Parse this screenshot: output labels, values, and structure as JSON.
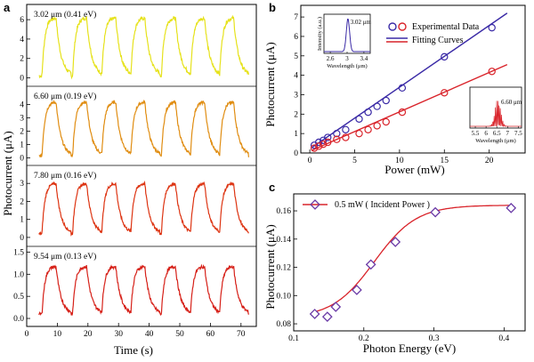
{
  "panels": {
    "a": "a",
    "b": "b",
    "c": "c"
  },
  "colors": {
    "yellow": "#e6e21c",
    "orange": "#e08d12",
    "redorange": "#dd3412",
    "red": "#d62018",
    "blue": "#3a2aa6",
    "fitred": "#d9232a",
    "marker": "#6a3aa6"
  },
  "chart_data": [
    {
      "type": "line",
      "id": "a",
      "xlabel": "Time  (s)",
      "ylabel": "Photocurrent  (μA)",
      "x_ticks": [
        0,
        10,
        20,
        30,
        40,
        50,
        60,
        70
      ],
      "xlim": [
        0,
        75
      ],
      "series": [
        {
          "name": "3.02 μm (0.41 eV)",
          "color": "#e6e21c",
          "yticks": [
            "0",
            "2",
            "4",
            "6"
          ],
          "ylim": [
            -0.5,
            7.2
          ],
          "base": 0.2,
          "peak": 6.2,
          "noise": 0.06
        },
        {
          "name": "6.60 μm (0.19 eV)",
          "color": "#e08d12",
          "yticks": [
            "0",
            "1",
            "2",
            "3",
            "4"
          ],
          "ylim": [
            -0.3,
            5.1
          ],
          "base": 0.15,
          "peak": 4.2,
          "noise": 0.05
        },
        {
          "name": "7.80 μm (0.16 eV)",
          "color": "#dd3412",
          "yticks": [
            "0",
            "1",
            "2",
            "3"
          ],
          "ylim": [
            -0.3,
            3.8
          ],
          "base": 0.2,
          "peak": 3.0,
          "noise": 0.05
        },
        {
          "name": "9.54 μm (0.13 eV)",
          "color": "#d62018",
          "yticks": [
            "0.0",
            "0.5",
            "1.0",
            "1.5"
          ],
          "ylim": [
            -0.1,
            1.55
          ],
          "base": 0.1,
          "peak": 1.18,
          "noise": 0.06
        }
      ],
      "pulse_starts": [
        5,
        15,
        24.5,
        34,
        44,
        53.5,
        63
      ]
    },
    {
      "type": "scatter",
      "id": "b",
      "xlabel": "Power  (mW)",
      "ylabel": "Photocurrent  (μA)",
      "x_ticks": [
        0,
        5,
        10,
        15,
        20
      ],
      "y_ticks": [
        0,
        1,
        2,
        3,
        4,
        5,
        6,
        7
      ],
      "xlim": [
        -1,
        24
      ],
      "ylim": [
        0,
        7.6
      ],
      "legend": [
        "Experimental Data",
        "Fitting Curves"
      ],
      "series": [
        {
          "name": "3.02 μm",
          "color": "#3a2aa6",
          "x": [
            0.5,
            1.0,
            1.5,
            2.0,
            3.0,
            4.0,
            5.5,
            6.5,
            7.5,
            8.5,
            10.3,
            15,
            20.3
          ],
          "y": [
            0.4,
            0.55,
            0.65,
            0.8,
            1.0,
            1.2,
            1.75,
            2.1,
            2.4,
            2.7,
            3.35,
            4.95,
            6.45
          ],
          "fit": [
            [
              0.3,
              0.3
            ],
            [
              22,
              7.2
            ]
          ]
        },
        {
          "name": "6.60 μm",
          "color": "#d9232a",
          "x": [
            0.5,
            1.0,
            1.5,
            2.0,
            3.0,
            4.0,
            5.5,
            6.5,
            7.5,
            8.5,
            10.3,
            15,
            20.3
          ],
          "y": [
            0.25,
            0.35,
            0.45,
            0.55,
            0.7,
            0.8,
            1.0,
            1.2,
            1.4,
            1.6,
            2.1,
            3.1,
            4.2
          ],
          "fit": [
            [
              0.3,
              0.15
            ],
            [
              22,
              4.55
            ]
          ]
        }
      ],
      "insets": [
        {
          "label": "3.02 μm",
          "xlabel": "Wavelength  (μm)",
          "ylabel": "Intensity (a.u.)",
          "xticks": [
            "2.6",
            "3",
            "3.4"
          ],
          "xlim": [
            2.45,
            3.55
          ]
        },
        {
          "label": "6.60 μm",
          "xlabel": "Wavelength  (μm)",
          "xticks": [
            "5.5",
            "6",
            "6.5",
            "7",
            "7.5"
          ],
          "xlim": [
            5.25,
            7.65
          ]
        }
      ]
    },
    {
      "type": "line",
      "id": "c",
      "xlabel": "Photon  Energy  (eV)",
      "ylabel": "Photocurrent  (μA)",
      "legend": "0.5 mW  ( Incident  Power )",
      "x_ticks": [
        "0.1",
        "0.2",
        "0.3",
        "0.4"
      ],
      "y_ticks": [
        "0.08",
        "0.10",
        "0.12",
        "0.14",
        "0.16"
      ],
      "xlim": [
        0.1,
        0.43
      ],
      "ylim": [
        0.075,
        0.172
      ],
      "x": [
        0.13,
        0.148,
        0.16,
        0.19,
        0.21,
        0.245,
        0.302,
        0.41
      ],
      "y": [
        0.087,
        0.085,
        0.092,
        0.104,
        0.122,
        0.138,
        0.159,
        0.162
      ]
    }
  ]
}
